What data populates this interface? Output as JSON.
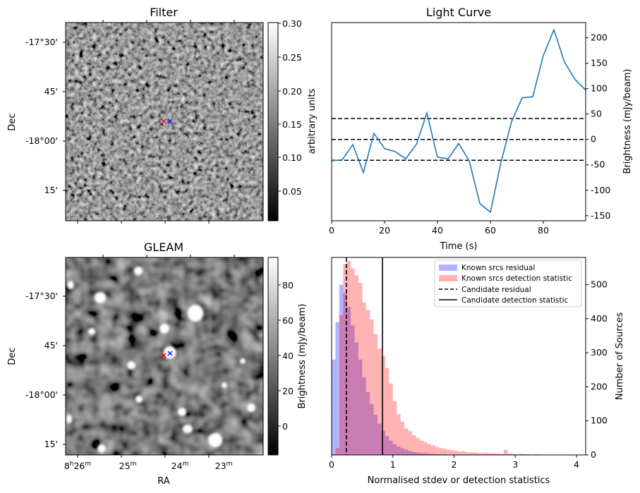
{
  "panels": {
    "filter": {
      "title": "Filter",
      "ylabel": "Dec",
      "yticks": [
        "-17°30'",
        "45'",
        "-18°00'",
        "15'"
      ],
      "colorbar": {
        "label": "arbitrary units",
        "ticks": [
          "0.30",
          "0.25",
          "0.20",
          "0.15",
          "0.10",
          "0.05"
        ],
        "range": [
          0.01,
          0.3
        ]
      },
      "markers": [
        {
          "color": "#ff0000",
          "symbol": "x"
        },
        {
          "color": "#0000ff",
          "symbol": "x"
        }
      ]
    },
    "gleam": {
      "title": "GLEAM",
      "ylabel": "Dec",
      "xlabel": "RA",
      "yticks": [
        "-17°30'",
        "45'",
        "-18°00'",
        "15'"
      ],
      "xticks": [
        {
          "main": "8",
          "sup1": "h",
          "mid": "26",
          "sup2": "m"
        },
        {
          "main": "25",
          "sup1": "",
          "mid": "",
          "sup2": "m"
        },
        {
          "main": "24",
          "sup1": "",
          "mid": "",
          "sup2": "m"
        },
        {
          "main": "23",
          "sup1": "",
          "mid": "",
          "sup2": "m"
        }
      ],
      "colorbar": {
        "label": "Brightness (mJy/beam)",
        "ticks": [
          "80",
          "60",
          "40",
          "20",
          "0"
        ],
        "range": [
          -15,
          95
        ]
      },
      "markers": [
        {
          "color": "#ff0000",
          "symbol": "x"
        },
        {
          "color": "#0000ff",
          "symbol": "x"
        }
      ]
    }
  },
  "chart_data": [
    {
      "type": "line",
      "title": "Light Curve",
      "xlabel": "Time (s)",
      "ylabel": "Brightness (mJy/beam)",
      "xlim": [
        0,
        96
      ],
      "ylim": [
        -160,
        230
      ],
      "xticks": [
        0,
        20,
        40,
        60,
        80
      ],
      "yticks": [
        -150,
        -100,
        -50,
        0,
        50,
        100,
        150,
        200
      ],
      "yaxis_side": "right",
      "series": [
        {
          "color": "#1f77b4",
          "x": [
            0,
            4,
            8,
            12,
            16,
            20,
            24,
            28,
            32,
            36,
            40,
            44,
            48,
            52,
            56,
            60,
            64,
            68,
            72,
            76,
            80,
            84,
            88,
            92,
            96
          ],
          "y": [
            -42,
            -40,
            -10,
            -65,
            12,
            -18,
            -24,
            -38,
            -10,
            52,
            -35,
            -38,
            -8,
            -42,
            -126,
            -143,
            -45,
            35,
            82,
            84,
            165,
            216,
            152,
            118,
            97
          ]
        }
      ],
      "hlines": [
        {
          "y": 41,
          "style": "dashed",
          "color": "#000000"
        },
        {
          "y": 0,
          "style": "dashed",
          "color": "#000000"
        },
        {
          "y": -41,
          "style": "dashed",
          "color": "#000000"
        }
      ]
    },
    {
      "type": "bar",
      "subtype": "histogram",
      "xlabel": "Normalised stdev or detection statistics",
      "ylabel": "Number of Sources",
      "xlim": [
        0,
        4.15
      ],
      "ylim": [
        0,
        580
      ],
      "xticks": [
        0,
        1,
        2,
        3,
        4
      ],
      "yticks": [
        0,
        100,
        200,
        300,
        400,
        500
      ],
      "yaxis_side": "right",
      "bin_width": 0.0625,
      "series": [
        {
          "name": "Known srcs residual",
          "color": "#0000ff",
          "opacity": 0.3,
          "values": [
            280,
            390,
            500,
            475,
            435,
            380,
            330,
            280,
            228,
            185,
            150,
            118,
            92,
            72,
            55,
            42,
            32,
            25,
            19,
            15,
            12,
            9,
            7,
            6,
            5,
            4,
            3,
            2,
            2,
            2,
            1,
            1,
            1,
            1,
            0,
            0,
            0,
            0,
            0,
            0,
            0,
            0,
            0,
            0,
            0,
            0,
            0,
            0,
            0,
            0,
            0,
            0,
            0,
            0,
            0,
            0,
            0,
            0,
            0,
            0,
            0,
            0,
            0,
            0,
            0,
            0
          ]
        },
        {
          "name": "Known srcs detection statistic",
          "color": "#ff0000",
          "opacity": 0.3,
          "values": [
            2,
            20,
            410,
            560,
            570,
            548,
            528,
            505,
            448,
            425,
            398,
            355,
            312,
            290,
            255,
            210,
            158,
            120,
            98,
            78,
            70,
            58,
            50,
            42,
            38,
            32,
            28,
            24,
            20,
            18,
            15,
            14,
            12,
            10,
            11,
            8,
            7,
            8,
            6,
            5,
            6,
            5,
            5,
            4,
            3,
            15,
            4,
            3,
            2,
            3,
            2,
            2,
            1,
            2,
            1,
            1,
            1,
            1,
            0,
            1,
            0,
            0,
            1,
            0,
            0,
            0
          ]
        }
      ],
      "vlines": [
        {
          "name": "Candidate residual",
          "x": 0.24,
          "style": "dashed",
          "color": "#000000"
        },
        {
          "name": "Candidate detection statistic",
          "x": 0.83,
          "style": "solid",
          "color": "#000000"
        }
      ],
      "legend": "top-right"
    }
  ]
}
